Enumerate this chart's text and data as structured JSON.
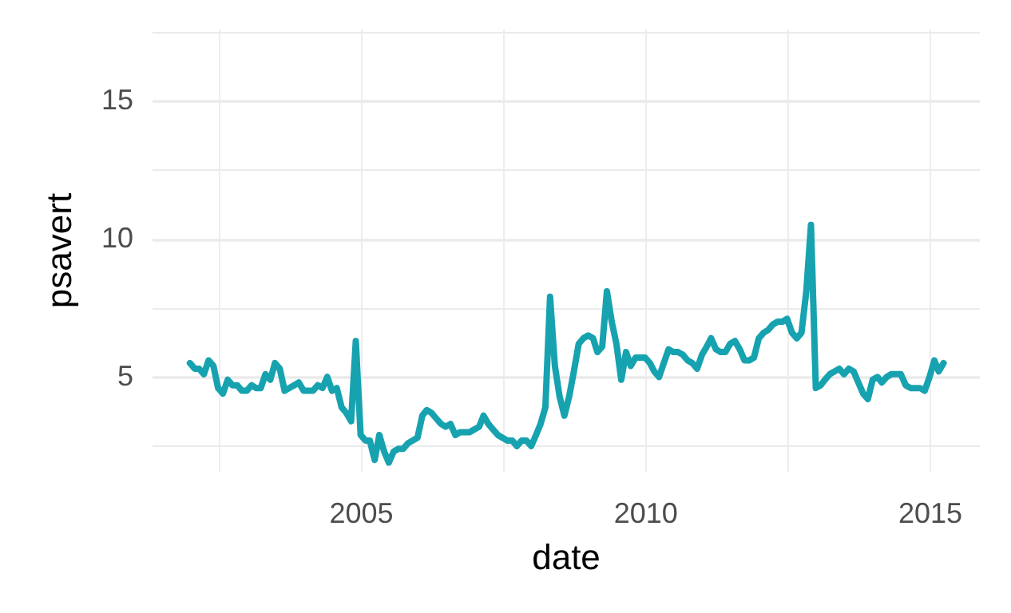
{
  "chart_data": {
    "type": "line",
    "xlabel": "date",
    "ylabel": "psavert",
    "grid": true,
    "xlim": [
      "2001-05",
      "2015-11-15"
    ],
    "ylim": [
      1.6,
      17.6
    ],
    "xticks": [
      {
        "value": "2002-07",
        "label": null
      },
      "2005",
      {
        "value": "2007-07",
        "label": null
      },
      "2010",
      {
        "value": "2012-07",
        "label": null
      },
      "2015"
    ],
    "yticks": [
      {
        "value": 2.5,
        "label": null
      },
      5,
      {
        "value": 7.5,
        "label": null
      },
      10,
      {
        "value": 12.5,
        "label": null
      },
      15,
      {
        "value": 17.5,
        "label": null
      }
    ],
    "x": [
      "2002-01",
      "2002-02",
      "2002-03",
      "2002-04",
      "2002-05",
      "2002-06",
      "2002-07",
      "2002-08",
      "2002-09",
      "2002-10",
      "2002-11",
      "2002-12",
      "2003-01",
      "2003-02",
      "2003-03",
      "2003-04",
      "2003-05",
      "2003-06",
      "2003-07",
      "2003-08",
      "2003-09",
      "2003-10",
      "2003-11",
      "2003-12",
      "2004-01",
      "2004-02",
      "2004-03",
      "2004-04",
      "2004-05",
      "2004-06",
      "2004-07",
      "2004-08",
      "2004-09",
      "2004-10",
      "2004-11",
      "2004-12",
      "2005-01",
      "2005-02",
      "2005-03",
      "2005-04",
      "2005-05",
      "2005-06",
      "2005-07",
      "2005-08",
      "2005-09",
      "2005-10",
      "2005-11",
      "2005-12",
      "2006-01",
      "2006-02",
      "2006-03",
      "2006-04",
      "2006-05",
      "2006-06",
      "2006-07",
      "2006-08",
      "2006-09",
      "2006-10",
      "2006-11",
      "2006-12",
      "2007-01",
      "2007-02",
      "2007-03",
      "2007-04",
      "2007-05",
      "2007-06",
      "2007-07",
      "2007-08",
      "2007-09",
      "2007-10",
      "2007-11",
      "2007-12",
      "2008-01",
      "2008-02",
      "2008-03",
      "2008-04",
      "2008-05",
      "2008-06",
      "2008-07",
      "2008-08",
      "2008-09",
      "2008-10",
      "2008-11",
      "2008-12",
      "2009-01",
      "2009-02",
      "2009-03",
      "2009-04",
      "2009-05",
      "2009-06",
      "2009-07",
      "2009-08",
      "2009-09",
      "2009-10",
      "2009-11",
      "2009-12",
      "2010-01",
      "2010-02",
      "2010-03",
      "2010-04",
      "2010-05",
      "2010-06",
      "2010-07",
      "2010-08",
      "2010-09",
      "2010-10",
      "2010-11",
      "2010-12",
      "2011-01",
      "2011-02",
      "2011-03",
      "2011-04",
      "2011-05",
      "2011-06",
      "2011-07",
      "2011-08",
      "2011-09",
      "2011-10",
      "2011-11",
      "2011-12",
      "2012-01",
      "2012-02",
      "2012-03",
      "2012-04",
      "2012-05",
      "2012-06",
      "2012-07",
      "2012-08",
      "2012-09",
      "2012-10",
      "2012-11",
      "2012-12",
      "2013-01",
      "2013-02",
      "2013-03",
      "2013-04",
      "2013-05",
      "2013-06",
      "2013-07",
      "2013-08",
      "2013-09",
      "2013-10",
      "2013-11",
      "2013-12",
      "2014-01",
      "2014-02",
      "2014-03",
      "2014-04",
      "2014-05",
      "2014-06",
      "2014-07",
      "2014-08",
      "2014-09",
      "2014-10",
      "2014-11",
      "2014-12",
      "2015-01",
      "2015-02",
      "2015-03",
      "2015-04"
    ],
    "series": [
      {
        "color": "#17a2b0",
        "values": [
          5.5,
          5.3,
          5.3,
          5.1,
          5.6,
          5.4,
          4.6,
          4.4,
          4.9,
          4.7,
          4.7,
          4.5,
          4.5,
          4.7,
          4.6,
          4.6,
          5.1,
          4.9,
          5.5,
          5.3,
          4.5,
          4.6,
          4.7,
          4.8,
          4.5,
          4.5,
          4.5,
          4.7,
          4.6,
          5.0,
          4.5,
          4.6,
          3.9,
          3.7,
          3.4,
          6.3,
          2.9,
          2.7,
          2.7,
          2.0,
          2.9,
          2.3,
          1.9,
          2.3,
          2.4,
          2.4,
          2.6,
          2.7,
          2.8,
          3.6,
          3.8,
          3.7,
          3.5,
          3.3,
          3.2,
          3.3,
          2.9,
          3.0,
          3.0,
          3.0,
          3.1,
          3.2,
          3.6,
          3.3,
          3.1,
          2.9,
          2.8,
          2.7,
          2.7,
          2.5,
          2.7,
          2.7,
          2.5,
          2.9,
          3.3,
          3.9,
          7.9,
          5.4,
          4.3,
          3.6,
          4.3,
          5.2,
          6.2,
          6.4,
          6.5,
          6.4,
          5.9,
          6.1,
          8.1,
          7.0,
          6.2,
          4.9,
          5.9,
          5.4,
          5.7,
          5.7,
          5.7,
          5.5,
          5.2,
          5.0,
          5.5,
          6.0,
          5.9,
          5.9,
          5.8,
          5.6,
          5.5,
          5.3,
          5.8,
          6.1,
          6.4,
          6.0,
          5.9,
          5.9,
          6.2,
          6.3,
          6.0,
          5.6,
          5.6,
          5.7,
          6.4,
          6.6,
          6.7,
          6.9,
          7.0,
          7.0,
          7.1,
          6.6,
          6.4,
          6.6,
          8.1,
          10.5,
          4.6,
          4.7,
          4.9,
          5.1,
          5.2,
          5.3,
          5.1,
          5.3,
          5.2,
          4.8,
          4.4,
          4.2,
          4.9,
          5.0,
          4.8,
          5.0,
          5.1,
          5.1,
          5.1,
          4.7,
          4.6,
          4.6,
          4.6,
          4.5,
          5.0,
          5.6,
          5.2,
          5.5
        ]
      }
    ]
  }
}
